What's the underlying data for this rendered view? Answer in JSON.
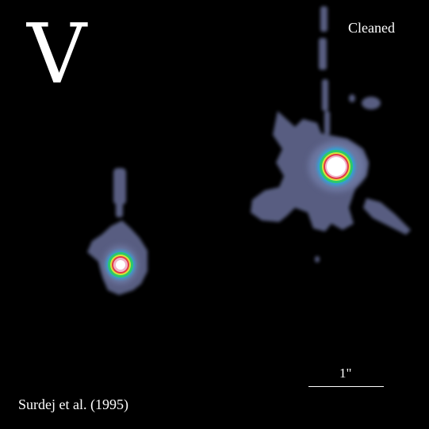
{
  "image": {
    "band_label": "V",
    "processing_label": "Cleaned",
    "scale_bar_label": "1\"",
    "credit": "Surdej et al. (1995)"
  },
  "colors": {
    "background": "#000000",
    "halo": "#5d6388",
    "halo_inner": "#6f7aa6",
    "ring_blue": "#2da3d8",
    "ring_green": "#2cc96a",
    "ring_yellow": "#d6e23a",
    "ring_red": "#e23a48",
    "core_pink": "#f1b3c7",
    "core_white": "#ffffff",
    "text": "#ffffff"
  }
}
